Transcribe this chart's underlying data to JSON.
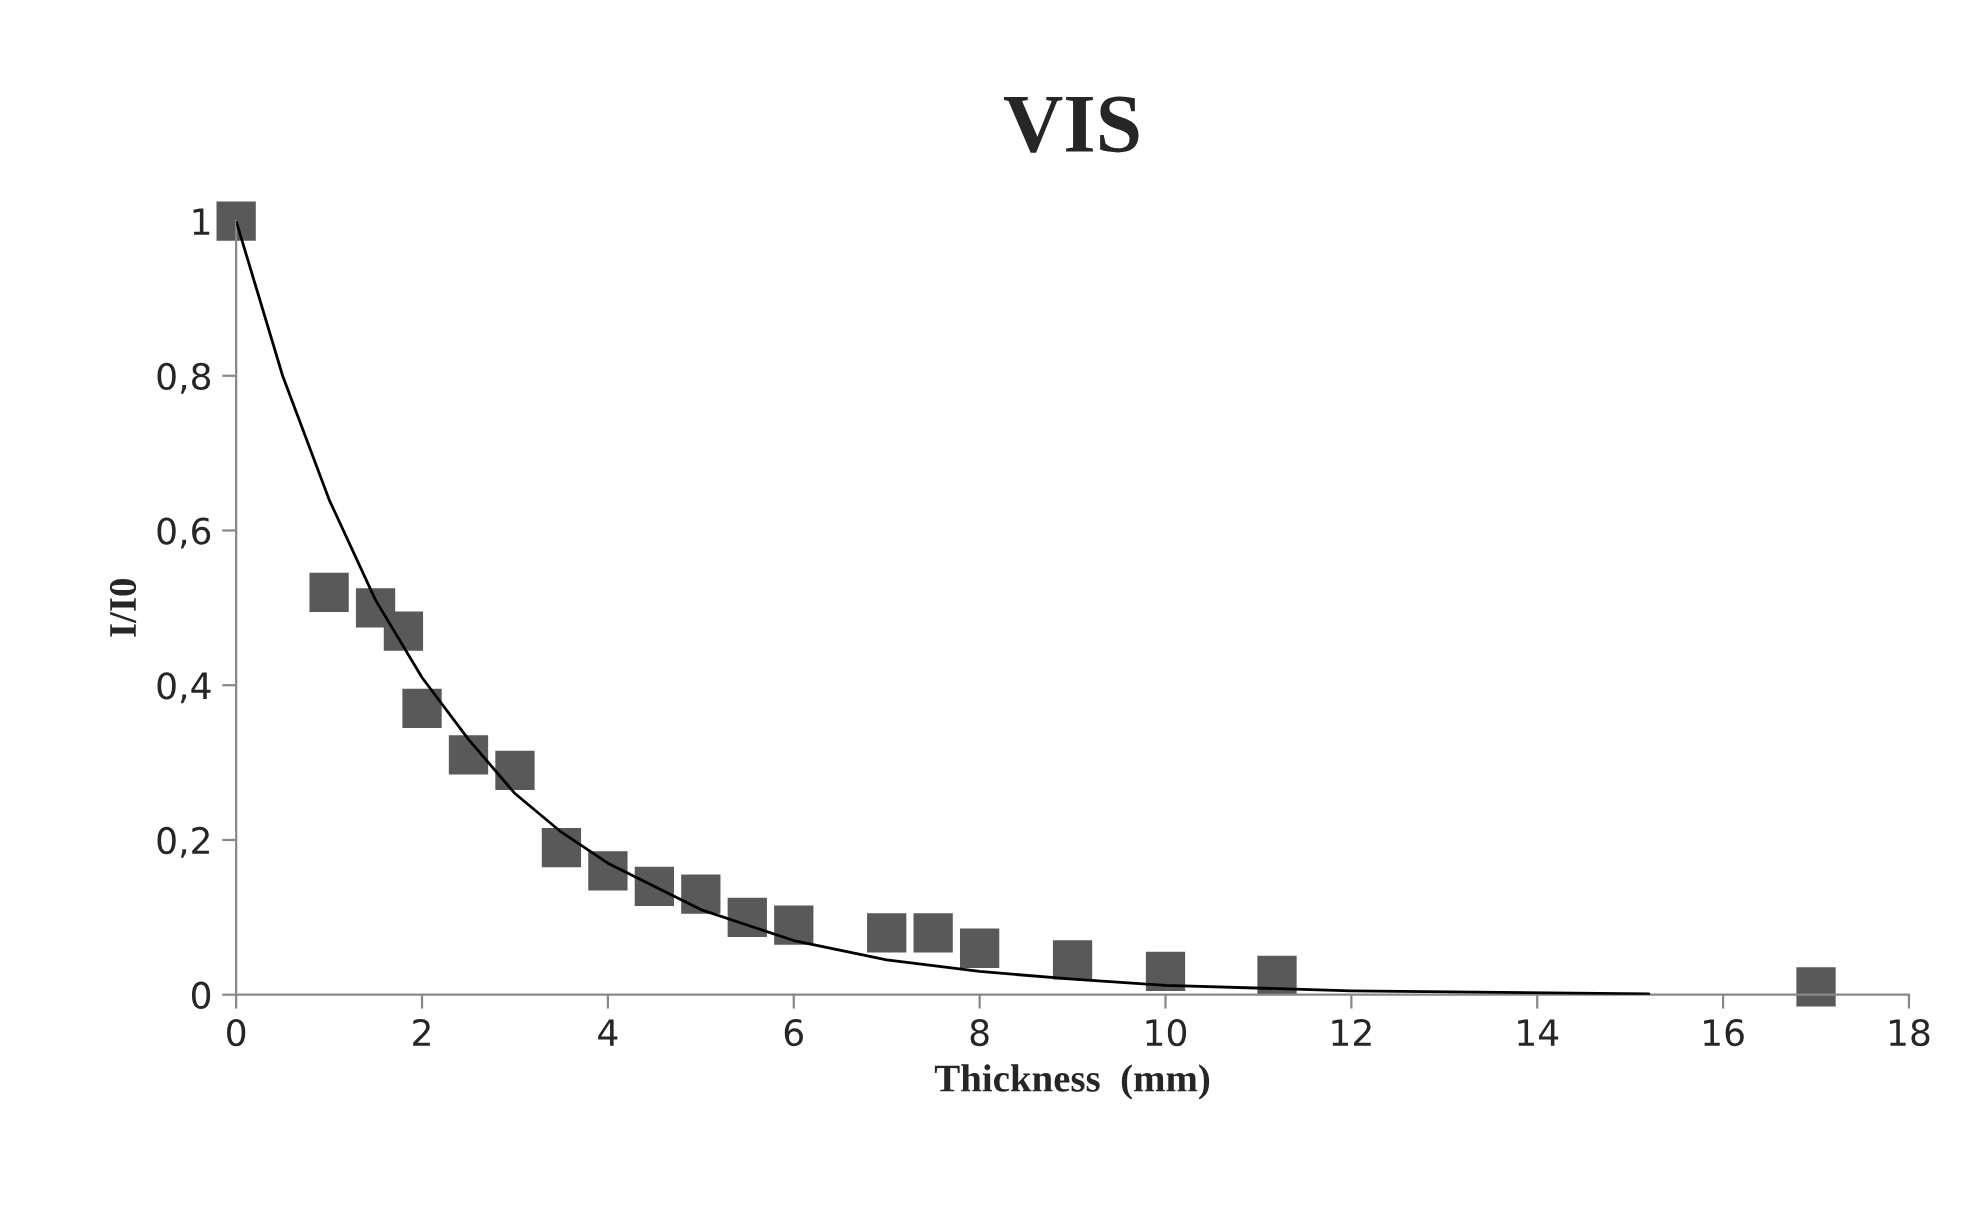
{
  "chart_data": {
    "type": "scatter",
    "title": "VIS",
    "xlabel": "Thickness  (mm)",
    "ylabel": "I/I0",
    "xlim": [
      0,
      18
    ],
    "xticks": [
      0,
      2,
      4,
      6,
      8,
      10,
      12,
      14,
      16,
      18
    ],
    "ylim": [
      0,
      1
    ],
    "yticks": [
      0,
      {
        "value": 0.2,
        "label": "0,2"
      },
      {
        "value": 0.4,
        "label": "0,4"
      },
      {
        "value": 0.6,
        "label": "0,6"
      },
      {
        "value": 0.8,
        "label": "0,8"
      },
      1
    ],
    "grid": false,
    "legend": false,
    "marker": "square",
    "series": [
      {
        "color": "#595959",
        "x": [
          0,
          1,
          1.5,
          1.8,
          2,
          2.5,
          3,
          3.5,
          4,
          4.5,
          5,
          5.5,
          6,
          7,
          7.5,
          8,
          9,
          10,
          11.2,
          17
        ],
        "values": [
          1,
          0.52,
          0.5,
          0.47,
          0.37,
          0.31,
          0.29,
          0.19,
          0.16,
          0.14,
          0.13,
          0.1,
          0.09,
          0.08,
          0.08,
          0.06,
          0.045,
          0.03,
          0.025,
          0.01
        ]
      },
      {
        "type": "line",
        "color": "#000000",
        "line_style": "solid",
        "marker": "none",
        "x": [
          0,
          0.5,
          1,
          1.5,
          2,
          2.5,
          3,
          3.5,
          4,
          5,
          6,
          7,
          8,
          9,
          10,
          12,
          15.2
        ],
        "values": [
          1,
          0.8,
          0.64,
          0.51,
          0.41,
          0.33,
          0.26,
          0.21,
          0.17,
          0.11,
          0.07,
          0.045,
          0.03,
          0.02,
          0.012,
          0.005,
          0.001
        ]
      }
    ]
  }
}
